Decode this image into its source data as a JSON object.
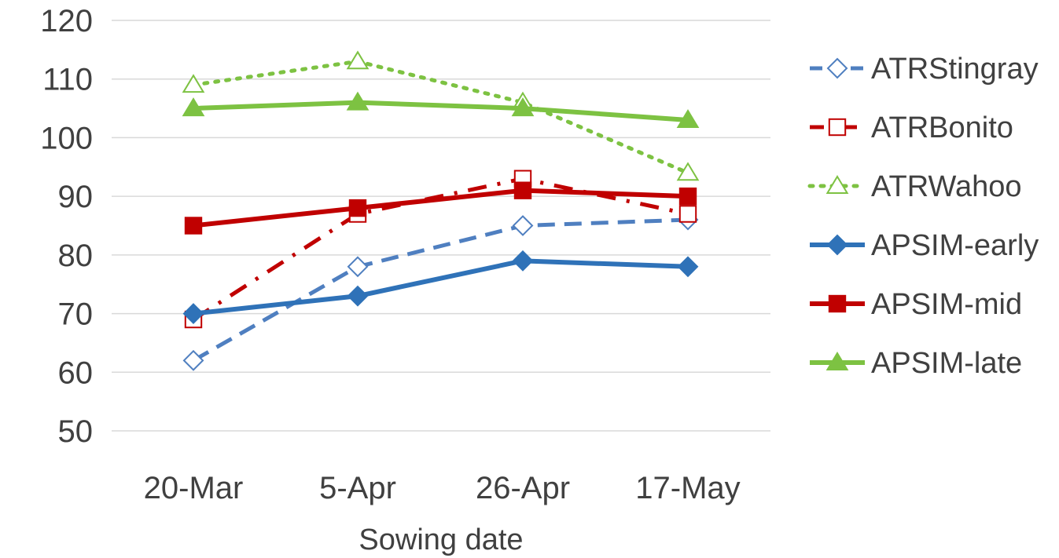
{
  "chart_data": {
    "type": "line",
    "title": "",
    "xlabel": "Sowing date",
    "ylabel": "",
    "categories": [
      "20-Mar",
      "5-Apr",
      "26-Apr",
      "17-May"
    ],
    "yticks": [
      50,
      60,
      70,
      80,
      90,
      100,
      110,
      120
    ],
    "ylim": [
      50,
      120
    ],
    "grid": "horizontal",
    "legend_position": "right",
    "series": [
      {
        "name": "ATRStingray",
        "values": [
          62,
          78,
          85,
          86
        ],
        "color": "#4F7FC0",
        "line": "dashed",
        "marker": "diamond",
        "marker_fill": "open"
      },
      {
        "name": "ATRBonito",
        "values": [
          69,
          87,
          93,
          87
        ],
        "color": "#C00000",
        "line": "dash-dot",
        "marker": "square",
        "marker_fill": "open"
      },
      {
        "name": "ATRWahoo",
        "values": [
          109,
          113,
          106,
          94
        ],
        "color": "#7DC242",
        "line": "dotted",
        "marker": "triangle",
        "marker_fill": "open"
      },
      {
        "name": "APSIM-early",
        "values": [
          70,
          73,
          79,
          78
        ],
        "color": "#2F72B8",
        "line": "solid",
        "marker": "diamond",
        "marker_fill": "filled"
      },
      {
        "name": "APSIM-mid",
        "values": [
          85,
          88,
          91,
          90
        ],
        "color": "#C00000",
        "line": "solid",
        "marker": "square",
        "marker_fill": "filled"
      },
      {
        "name": "APSIM-late",
        "values": [
          105,
          106,
          105,
          103
        ],
        "color": "#7DC242",
        "line": "solid",
        "marker": "triangle",
        "marker_fill": "filled"
      }
    ]
  }
}
